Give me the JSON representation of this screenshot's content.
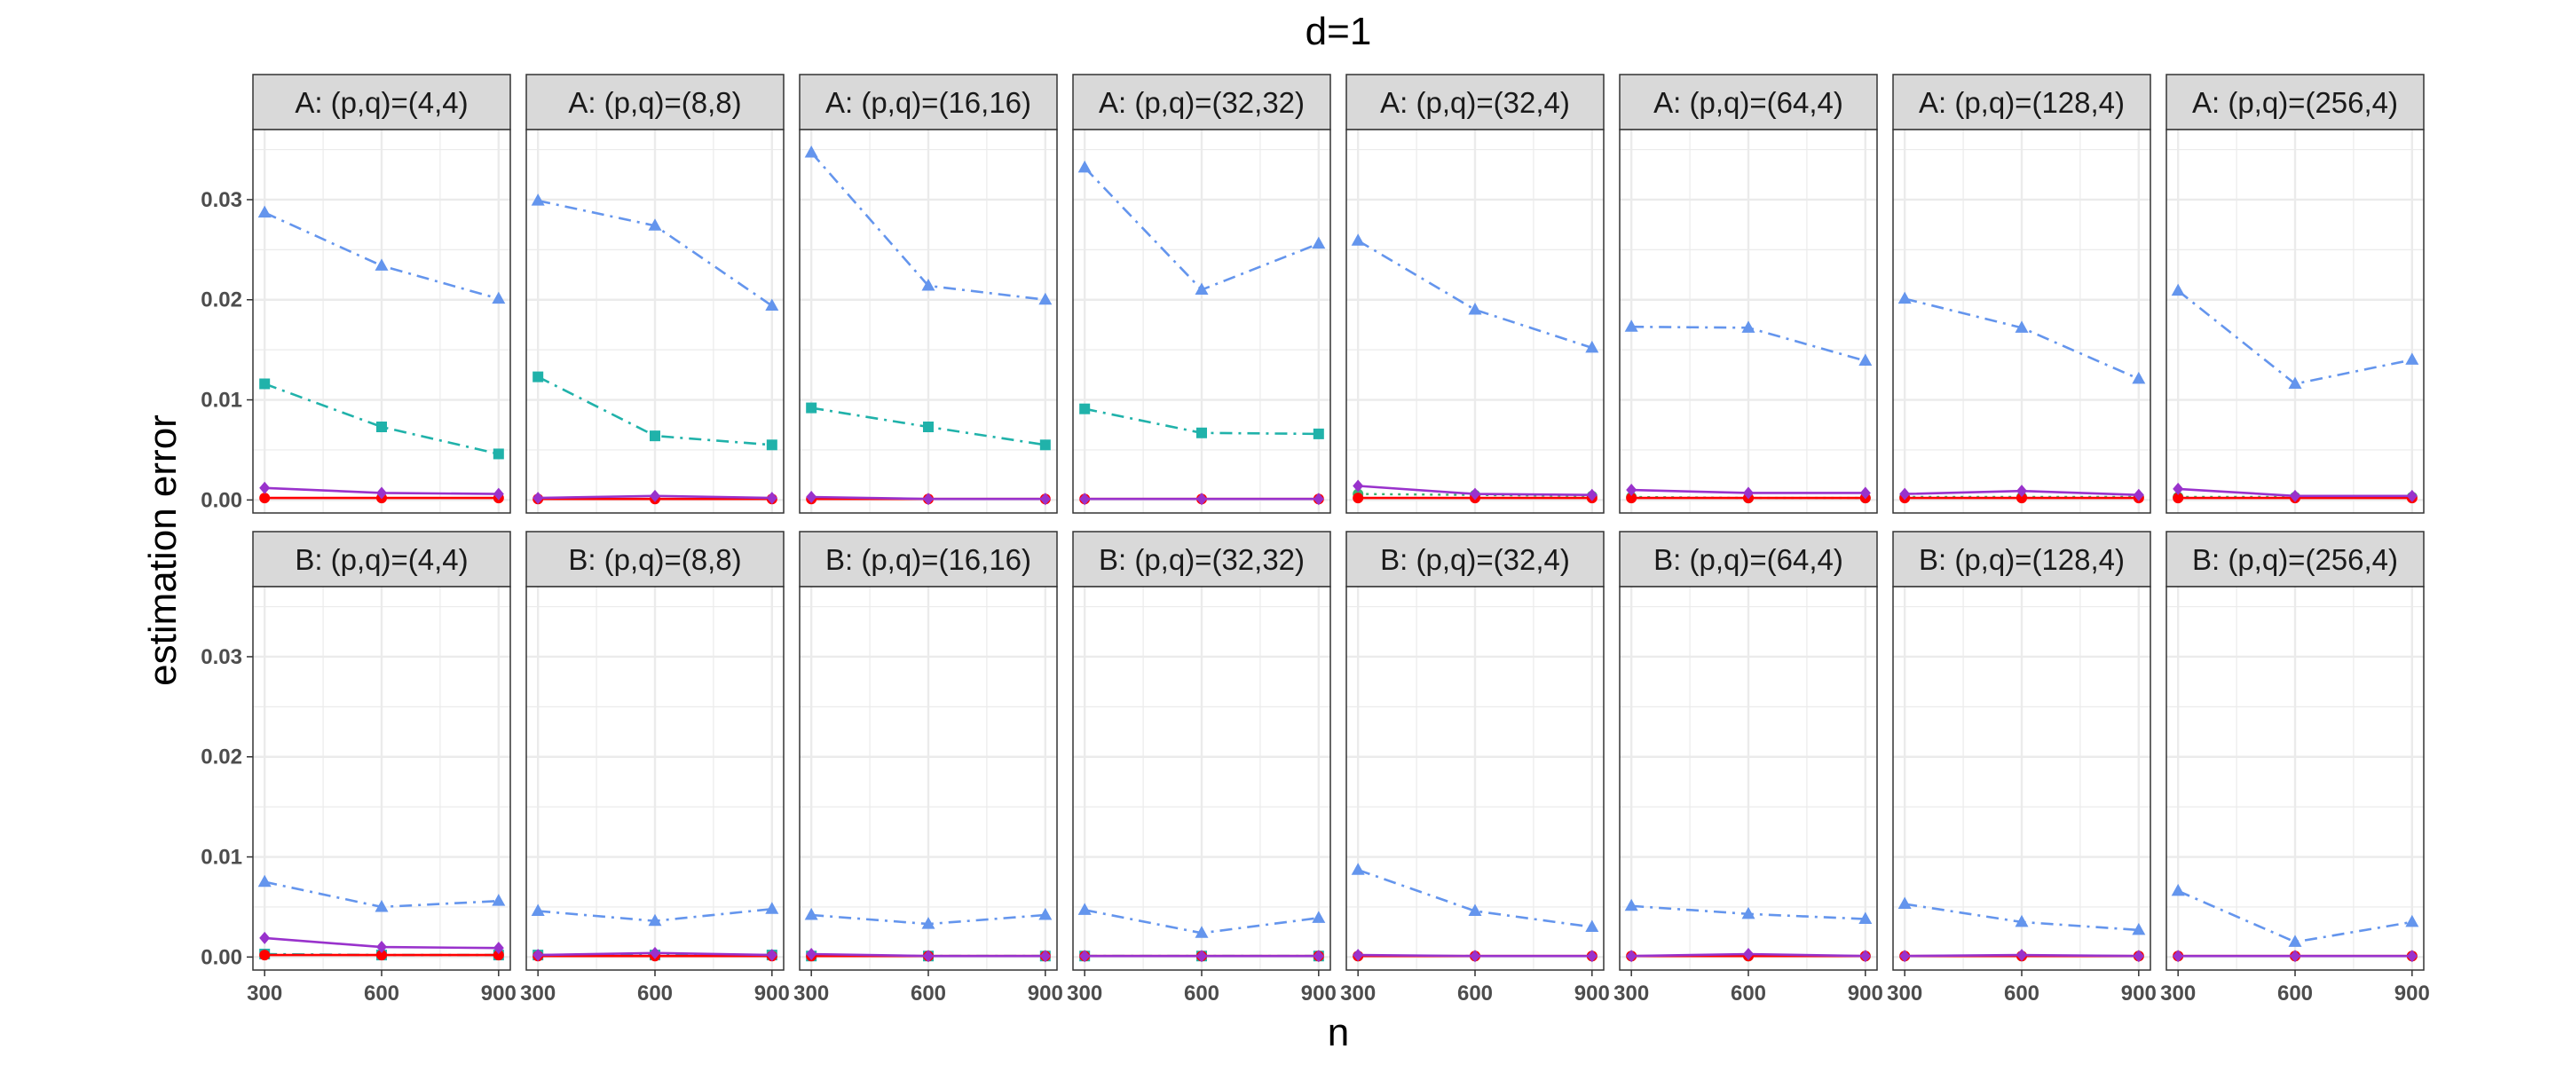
{
  "chart_data": {
    "type": "line",
    "title": "d=1",
    "xlabel": "n",
    "ylabel": "estimation error",
    "x": [
      300,
      600,
      900
    ],
    "x_ticks": [
      "300",
      "600",
      "900"
    ],
    "y_ticks": [
      "0.00",
      "0.01",
      "0.02",
      "0.03"
    ],
    "ylim": [
      -0.0013,
      0.037
    ],
    "colors": {
      "blue": "#6495ED",
      "teal": "#20B2AA",
      "purple": "#9932CC",
      "red": "#FF0000",
      "green": "#3CB371",
      "strip_fill": "#D9D9D9",
      "grid": "#EBEBEB"
    },
    "panels": [
      {
        "label": "A: (p,q)=(4,4)",
        "series": [
          {
            "name": "blue",
            "values": [
              0.0287,
              0.0234,
              0.0201
            ]
          },
          {
            "name": "teal",
            "values": [
              0.0116,
              0.0073,
              0.0046
            ]
          },
          {
            "name": "purple",
            "values": [
              0.0012,
              0.0007,
              0.0006
            ]
          },
          {
            "name": "red",
            "values": [
              0.0002,
              0.0002,
              0.0002
            ]
          }
        ]
      },
      {
        "label": "A: (p,q)=(8,8)",
        "series": [
          {
            "name": "blue",
            "values": [
              0.0299,
              0.0274,
              0.0194
            ]
          },
          {
            "name": "teal",
            "values": [
              0.0123,
              0.0064,
              0.0055
            ]
          },
          {
            "name": "purple",
            "values": [
              0.0002,
              0.0004,
              0.0002
            ]
          },
          {
            "name": "red",
            "values": [
              0.0001,
              0.0001,
              0.0001
            ]
          }
        ]
      },
      {
        "label": "A: (p,q)=(16,16)",
        "series": [
          {
            "name": "blue",
            "values": [
              0.0347,
              0.0214,
              0.02
            ]
          },
          {
            "name": "teal",
            "values": [
              0.0092,
              0.0073,
              0.0055
            ]
          },
          {
            "name": "purple",
            "values": [
              0.0003,
              0.0001,
              0.0001
            ]
          },
          {
            "name": "red",
            "values": [
              0.0001,
              0.0001,
              0.0001
            ]
          }
        ]
      },
      {
        "label": "A: (p,q)=(32,32)",
        "series": [
          {
            "name": "blue",
            "values": [
              0.0332,
              0.021,
              0.0256
            ]
          },
          {
            "name": "teal",
            "values": [
              0.0091,
              0.0067,
              0.0066
            ]
          },
          {
            "name": "purple",
            "values": [
              0.0001,
              0.0001,
              0.0001
            ]
          },
          {
            "name": "red",
            "values": [
              0.0001,
              0.0001,
              0.0001
            ]
          }
        ]
      },
      {
        "label": "A: (p,q)=(32,4)",
        "series": [
          {
            "name": "blue",
            "values": [
              0.0259,
              0.019,
              0.0152
            ]
          },
          {
            "name": "green",
            "values": [
              0.0006,
              0.0005,
              0.0004
            ]
          },
          {
            "name": "purple",
            "values": [
              0.0014,
              0.0006,
              0.0005
            ]
          },
          {
            "name": "red",
            "values": [
              0.0002,
              0.0002,
              0.0002
            ]
          }
        ]
      },
      {
        "label": "A: (p,q)=(64,4)",
        "series": [
          {
            "name": "blue",
            "values": [
              0.0173,
              0.0172,
              0.0139
            ]
          },
          {
            "name": "green",
            "values": [
              0.0003,
              0.0002,
              0.0002
            ]
          },
          {
            "name": "purple",
            "values": [
              0.001,
              0.0007,
              0.0007
            ]
          },
          {
            "name": "red",
            "values": [
              0.0002,
              0.0002,
              0.0002
            ]
          }
        ]
      },
      {
        "label": "A: (p,q)=(128,4)",
        "series": [
          {
            "name": "blue",
            "values": [
              0.0201,
              0.0172,
              0.0121
            ]
          },
          {
            "name": "green",
            "values": [
              0.0003,
              0.0003,
              0.0003
            ]
          },
          {
            "name": "purple",
            "values": [
              0.0006,
              0.0009,
              0.0005
            ]
          },
          {
            "name": "red",
            "values": [
              0.0002,
              0.0002,
              0.0002
            ]
          }
        ]
      },
      {
        "label": "A: (p,q)=(256,4)",
        "series": [
          {
            "name": "blue",
            "values": [
              0.0209,
              0.0116,
              0.014
            ]
          },
          {
            "name": "green",
            "values": [
              0.0003,
              0.0003,
              0.0003
            ]
          },
          {
            "name": "purple",
            "values": [
              0.0011,
              0.0004,
              0.0004
            ]
          },
          {
            "name": "red",
            "values": [
              0.0002,
              0.0002,
              0.0002
            ]
          }
        ]
      },
      {
        "label": "B: (p,q)=(4,4)",
        "series": [
          {
            "name": "blue",
            "values": [
              0.0075,
              0.005,
              0.0056
            ]
          },
          {
            "name": "teal",
            "values": [
              0.0003,
              0.0002,
              0.0002
            ]
          },
          {
            "name": "purple",
            "values": [
              0.0019,
              0.001,
              0.0009
            ]
          },
          {
            "name": "red",
            "values": [
              0.0002,
              0.0002,
              0.0002
            ]
          }
        ]
      },
      {
        "label": "B: (p,q)=(8,8)",
        "series": [
          {
            "name": "blue",
            "values": [
              0.0046,
              0.0036,
              0.0048
            ]
          },
          {
            "name": "teal",
            "values": [
              0.0002,
              0.0002,
              0.0002
            ]
          },
          {
            "name": "purple",
            "values": [
              0.0002,
              0.0004,
              0.0002
            ]
          },
          {
            "name": "red",
            "values": [
              0.0001,
              0.0001,
              0.0001
            ]
          }
        ]
      },
      {
        "label": "B: (p,q)=(16,16)",
        "series": [
          {
            "name": "blue",
            "values": [
              0.0042,
              0.0033,
              0.0042
            ]
          },
          {
            "name": "teal",
            "values": [
              0.0001,
              0.0001,
              0.0001
            ]
          },
          {
            "name": "purple",
            "values": [
              0.0003,
              0.0001,
              0.0001
            ]
          },
          {
            "name": "red",
            "values": [
              0.0001,
              0.0001,
              0.0001
            ]
          }
        ]
      },
      {
        "label": "B: (p,q)=(32,32)",
        "series": [
          {
            "name": "blue",
            "values": [
              0.0047,
              0.0024,
              0.0039
            ]
          },
          {
            "name": "teal",
            "values": [
              0.0001,
              0.0001,
              0.0001
            ]
          },
          {
            "name": "purple",
            "values": [
              0.0001,
              0.0001,
              0.0001
            ]
          },
          {
            "name": "red",
            "values": [
              0.0001,
              0.0001,
              0.0001
            ]
          }
        ]
      },
      {
        "label": "B: (p,q)=(32,4)",
        "series": [
          {
            "name": "blue",
            "values": [
              0.0087,
              0.0046,
              0.003
            ]
          },
          {
            "name": "green",
            "values": [
              0.0001,
              0.0001,
              0.0001
            ]
          },
          {
            "name": "purple",
            "values": [
              0.0002,
              0.0001,
              0.0001
            ]
          },
          {
            "name": "red",
            "values": [
              0.0001,
              0.0001,
              0.0001
            ]
          }
        ]
      },
      {
        "label": "B: (p,q)=(64,4)",
        "series": [
          {
            "name": "blue",
            "values": [
              0.0051,
              0.0043,
              0.0038
            ]
          },
          {
            "name": "green",
            "values": [
              0.0001,
              0.0001,
              0.0001
            ]
          },
          {
            "name": "purple",
            "values": [
              0.0001,
              0.0003,
              0.0001
            ]
          },
          {
            "name": "red",
            "values": [
              0.0001,
              0.0001,
              0.0001
            ]
          }
        ]
      },
      {
        "label": "B: (p,q)=(128,4)",
        "series": [
          {
            "name": "blue",
            "values": [
              0.0053,
              0.0035,
              0.0027
            ]
          },
          {
            "name": "green",
            "values": [
              0.0001,
              0.0001,
              0.0001
            ]
          },
          {
            "name": "purple",
            "values": [
              0.0001,
              0.0002,
              0.0001
            ]
          },
          {
            "name": "red",
            "values": [
              0.0001,
              0.0001,
              0.0001
            ]
          }
        ]
      },
      {
        "label": "B: (p,q)=(256,4)",
        "series": [
          {
            "name": "blue",
            "values": [
              0.0066,
              0.0015,
              0.0035
            ]
          },
          {
            "name": "green",
            "values": [
              0.0001,
              0.0001,
              0.0001
            ]
          },
          {
            "name": "purple",
            "values": [
              0.0001,
              0.0001,
              0.0001
            ]
          },
          {
            "name": "red",
            "values": [
              0.0001,
              0.0001,
              0.0001
            ]
          }
        ]
      }
    ]
  }
}
